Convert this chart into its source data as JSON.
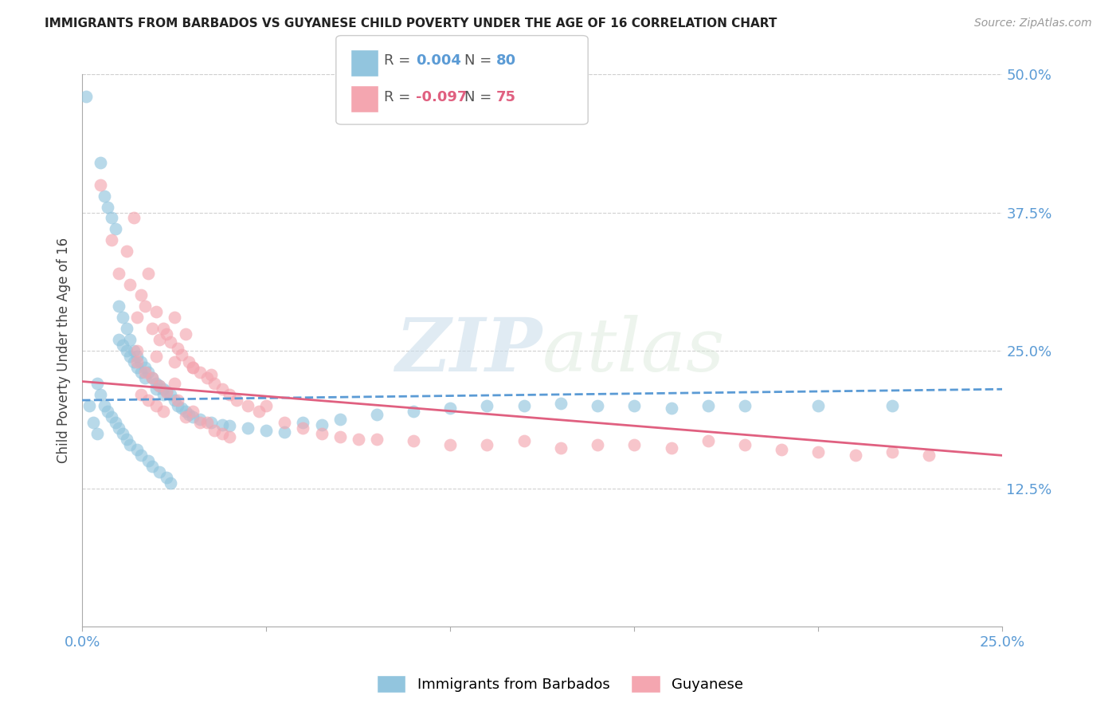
{
  "title": "IMMIGRANTS FROM BARBADOS VS GUYANESE CHILD POVERTY UNDER THE AGE OF 16 CORRELATION CHART",
  "source": "Source: ZipAtlas.com",
  "ylabel": "Child Poverty Under the Age of 16",
  "x_min": 0.0,
  "x_max": 0.25,
  "y_min": 0.0,
  "y_max": 0.5,
  "y_tick_labels_right": [
    "50.0%",
    "37.5%",
    "25.0%",
    "12.5%"
  ],
  "y_tick_vals_right": [
    0.5,
    0.375,
    0.25,
    0.125
  ],
  "color_blue": "#92c5de",
  "color_pink": "#f4a6b0",
  "color_blue_line": "#5b9bd5",
  "color_pink_line": "#e06080",
  "color_blue_text": "#5b9bd5",
  "color_pink_text": "#e06080",
  "background_color": "#ffffff",
  "grid_color": "#d0d0d0",
  "blue_scatter_x": [
    0.001,
    0.002,
    0.003,
    0.004,
    0.004,
    0.005,
    0.005,
    0.006,
    0.006,
    0.007,
    0.007,
    0.008,
    0.008,
    0.009,
    0.009,
    0.01,
    0.01,
    0.01,
    0.011,
    0.011,
    0.011,
    0.012,
    0.012,
    0.012,
    0.013,
    0.013,
    0.013,
    0.014,
    0.014,
    0.015,
    0.015,
    0.015,
    0.016,
    0.016,
    0.016,
    0.017,
    0.017,
    0.018,
    0.018,
    0.019,
    0.019,
    0.02,
    0.02,
    0.021,
    0.021,
    0.022,
    0.022,
    0.023,
    0.023,
    0.024,
    0.024,
    0.025,
    0.026,
    0.027,
    0.028,
    0.029,
    0.03,
    0.032,
    0.035,
    0.038,
    0.04,
    0.045,
    0.05,
    0.055,
    0.06,
    0.065,
    0.07,
    0.08,
    0.09,
    0.1,
    0.11,
    0.12,
    0.13,
    0.14,
    0.15,
    0.16,
    0.17,
    0.18,
    0.2,
    0.22
  ],
  "blue_scatter_y": [
    0.48,
    0.2,
    0.185,
    0.175,
    0.22,
    0.42,
    0.21,
    0.39,
    0.2,
    0.38,
    0.195,
    0.37,
    0.19,
    0.36,
    0.185,
    0.29,
    0.26,
    0.18,
    0.28,
    0.255,
    0.175,
    0.27,
    0.25,
    0.17,
    0.26,
    0.245,
    0.165,
    0.25,
    0.24,
    0.245,
    0.235,
    0.16,
    0.24,
    0.23,
    0.155,
    0.235,
    0.225,
    0.23,
    0.15,
    0.225,
    0.145,
    0.22,
    0.215,
    0.218,
    0.14,
    0.215,
    0.21,
    0.213,
    0.135,
    0.21,
    0.13,
    0.205,
    0.2,
    0.198,
    0.195,
    0.192,
    0.19,
    0.188,
    0.185,
    0.183,
    0.182,
    0.18,
    0.178,
    0.176,
    0.185,
    0.183,
    0.188,
    0.192,
    0.195,
    0.198,
    0.2,
    0.2,
    0.202,
    0.2,
    0.2,
    0.198,
    0.2,
    0.2,
    0.2,
    0.2
  ],
  "pink_scatter_x": [
    0.005,
    0.008,
    0.01,
    0.012,
    0.013,
    0.014,
    0.015,
    0.016,
    0.017,
    0.018,
    0.019,
    0.02,
    0.021,
    0.022,
    0.023,
    0.024,
    0.025,
    0.026,
    0.027,
    0.028,
    0.029,
    0.03,
    0.032,
    0.034,
    0.036,
    0.038,
    0.04,
    0.042,
    0.045,
    0.048,
    0.05,
    0.055,
    0.06,
    0.065,
    0.07,
    0.075,
    0.08,
    0.09,
    0.1,
    0.11,
    0.12,
    0.13,
    0.14,
    0.15,
    0.16,
    0.17,
    0.18,
    0.19,
    0.2,
    0.21,
    0.22,
    0.23,
    0.016,
    0.018,
    0.02,
    0.022,
    0.025,
    0.028,
    0.032,
    0.036,
    0.04,
    0.015,
    0.017,
    0.019,
    0.021,
    0.023,
    0.026,
    0.03,
    0.034,
    0.038,
    0.015,
    0.02,
    0.025,
    0.03,
    0.035
  ],
  "pink_scatter_y": [
    0.4,
    0.35,
    0.32,
    0.34,
    0.31,
    0.37,
    0.28,
    0.3,
    0.29,
    0.32,
    0.27,
    0.285,
    0.26,
    0.27,
    0.265,
    0.258,
    0.28,
    0.252,
    0.246,
    0.265,
    0.24,
    0.235,
    0.23,
    0.225,
    0.22,
    0.215,
    0.21,
    0.205,
    0.2,
    0.195,
    0.2,
    0.185,
    0.18,
    0.175,
    0.172,
    0.17,
    0.17,
    0.168,
    0.165,
    0.165,
    0.168,
    0.162,
    0.165,
    0.165,
    0.162,
    0.168,
    0.165,
    0.16,
    0.158,
    0.155,
    0.158,
    0.155,
    0.21,
    0.205,
    0.2,
    0.195,
    0.22,
    0.19,
    0.185,
    0.178,
    0.172,
    0.24,
    0.23,
    0.225,
    0.218,
    0.212,
    0.205,
    0.195,
    0.185,
    0.175,
    0.25,
    0.245,
    0.24,
    0.235,
    0.228
  ]
}
